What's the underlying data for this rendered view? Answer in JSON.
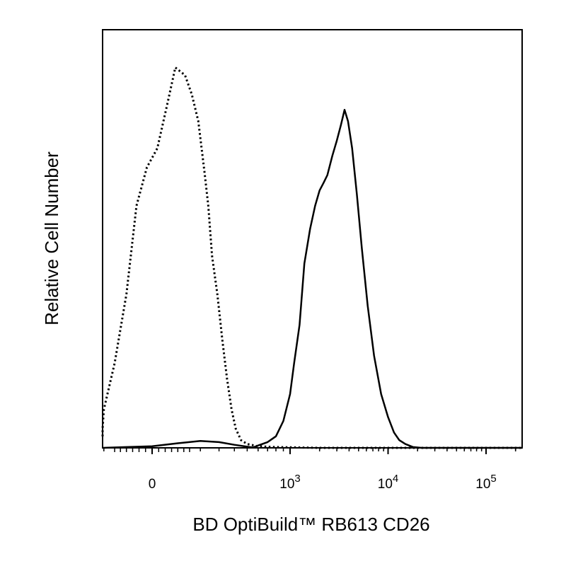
{
  "chart_data": {
    "type": "line",
    "title": "",
    "xlabel": "BD OptiBuild™ RB613 CD26",
    "ylabel": "Relative Cell Number",
    "x_scale": "biexponential",
    "x_tick_labels": [
      {
        "base": "0",
        "exp": ""
      },
      {
        "base": "10",
        "exp": "3"
      },
      {
        "base": "10",
        "exp": "4"
      },
      {
        "base": "10",
        "exp": "5"
      }
    ],
    "x_major_ticks": [
      0,
      1000,
      10000,
      100000
    ],
    "xlim": [
      -300,
      250000
    ],
    "ylim": [
      0,
      100
    ],
    "grid": false,
    "legend": "none",
    "series": [
      {
        "style": "dotted",
        "color": "#000000",
        "points": [
          [
            -300,
            3
          ],
          [
            -250,
            5
          ],
          [
            -200,
            10
          ],
          [
            -150,
            22
          ],
          [
            -100,
            40
          ],
          [
            -60,
            63
          ],
          [
            -20,
            73
          ],
          [
            20,
            78
          ],
          [
            60,
            90
          ],
          [
            90,
            99
          ],
          [
            110,
            98
          ],
          [
            130,
            97
          ],
          [
            160,
            92
          ],
          [
            190,
            85
          ],
          [
            220,
            72
          ],
          [
            240,
            63
          ],
          [
            260,
            50
          ],
          [
            290,
            40
          ],
          [
            320,
            28
          ],
          [
            350,
            18
          ],
          [
            380,
            10
          ],
          [
            410,
            5
          ],
          [
            450,
            2
          ],
          [
            500,
            1
          ],
          [
            600,
            0.4
          ],
          [
            800,
            0.2
          ],
          [
            2000,
            0
          ],
          [
            100000,
            0
          ],
          [
            250000,
            0
          ]
        ]
      },
      {
        "style": "solid",
        "color": "#000000",
        "points": [
          [
            -300,
            0
          ],
          [
            -100,
            0.2
          ],
          [
            0,
            0.4
          ],
          [
            100,
            1.2
          ],
          [
            200,
            1.8
          ],
          [
            300,
            1.5
          ],
          [
            400,
            0.8
          ],
          [
            500,
            0.3
          ],
          [
            550,
            0.1
          ],
          [
            600,
            0.6
          ],
          [
            700,
            1.5
          ],
          [
            800,
            3
          ],
          [
            900,
            7
          ],
          [
            1000,
            14
          ],
          [
            1100,
            22
          ],
          [
            1250,
            32
          ],
          [
            1400,
            48
          ],
          [
            1600,
            57
          ],
          [
            1800,
            63
          ],
          [
            2000,
            67
          ],
          [
            2200,
            69
          ],
          [
            2400,
            71
          ],
          [
            2700,
            76
          ],
          [
            3000,
            80
          ],
          [
            3300,
            84
          ],
          [
            3600,
            88
          ],
          [
            3900,
            85
          ],
          [
            4300,
            78
          ],
          [
            4800,
            66
          ],
          [
            5400,
            52
          ],
          [
            6200,
            37
          ],
          [
            7200,
            24
          ],
          [
            8500,
            14
          ],
          [
            10000,
            8
          ],
          [
            11500,
            4
          ],
          [
            13000,
            2
          ],
          [
            15000,
            1
          ],
          [
            18000,
            0.2
          ],
          [
            22000,
            0
          ],
          [
            250000,
            0
          ]
        ]
      }
    ]
  }
}
